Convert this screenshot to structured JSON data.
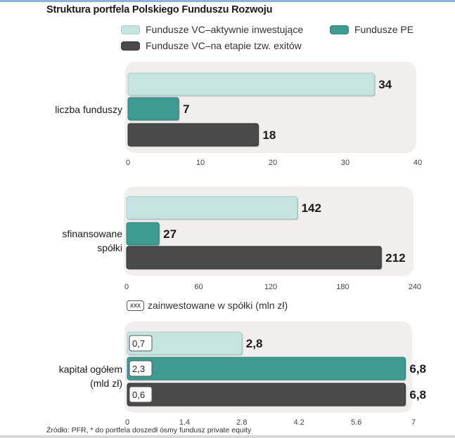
{
  "title": "Struktura portfela Polskiego Funduszu Rozwoju",
  "colors": {
    "vc_active": "#c6e4e0",
    "pe": "#3d9b92",
    "vc_exit": "#4a4a4a",
    "panel": "#f1eeee"
  },
  "legend": [
    {
      "label": "Fundusze VC–aktywnie inwestujące"
    },
    {
      "label": "Fundusze PE"
    },
    {
      "label": "Fundusze VC–na etapie tzw. exitów"
    }
  ],
  "note": {
    "box": "xxx",
    "text": "zainwestowane w spółki (mln zł)"
  },
  "footer": "Źródło: PFR, * do portfela doszedł ósmy fundusz private equity",
  "chart_data": [
    {
      "type": "bar",
      "orientation": "horizontal",
      "category_label": "liczba funduszy",
      "series": [
        {
          "name": "Fundusze VC–aktywnie inwestujące",
          "value": 34
        },
        {
          "name": "Fundusze PE",
          "value": 7
        },
        {
          "name": "Fundusze VC–na etapie tzw. exitów",
          "value": 18
        }
      ],
      "xlim": [
        0,
        40
      ],
      "ticks": [
        "0",
        "10",
        "20",
        "30",
        "40"
      ],
      "value_labels": [
        "34",
        "7",
        "18"
      ]
    },
    {
      "type": "bar",
      "orientation": "horizontal",
      "category_label": "sfinansowane spółki",
      "series": [
        {
          "name": "Fundusze VC–aktywnie inwestujące",
          "value": 142
        },
        {
          "name": "Fundusze PE",
          "value": 27
        },
        {
          "name": "Fundusze VC–na etapie tzw. exitów",
          "value": 212
        }
      ],
      "xlim": [
        0,
        240
      ],
      "ticks": [
        "0",
        "60",
        "120",
        "180",
        "240"
      ],
      "value_labels": [
        "142",
        "27",
        "212"
      ]
    },
    {
      "type": "bar",
      "orientation": "horizontal",
      "category_label": "kapitał ogółem (mld zł)",
      "series": [
        {
          "name": "Fundusze VC–aktywnie inwestujące",
          "value": 2.8,
          "invested": "0,7"
        },
        {
          "name": "Fundusze PE",
          "value": 6.8,
          "invested": "2,3"
        },
        {
          "name": "Fundusze VC–na etapie tzw. exitów",
          "value": 6.8,
          "invested": "0,6"
        }
      ],
      "xlim": [
        0,
        7
      ],
      "ticks": [
        "0",
        "1.4",
        "2.8",
        "4.2",
        "5.6",
        "7"
      ],
      "value_labels": [
        "2,8",
        "6,8",
        "6,8"
      ]
    }
  ]
}
